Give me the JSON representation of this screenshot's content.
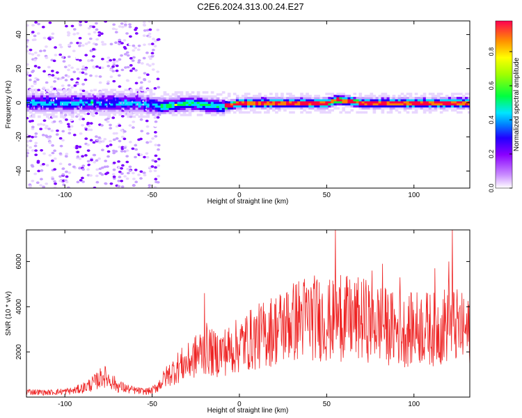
{
  "title": "C2E6.2024.313.00.24.E27",
  "chart_data": [
    {
      "type": "heatmap",
      "xlabel": "Height of straight line (km)",
      "ylabel": "Frequency (Hz)",
      "xlim": [
        -122,
        132
      ],
      "ylim": [
        -50,
        48
      ],
      "xticks": [
        -100,
        -50,
        0,
        50,
        100
      ],
      "yticks": [
        -40,
        -20,
        0,
        20,
        40
      ],
      "colorbar": {
        "label": "Normalized spectral amplitude",
        "range": [
          0,
          0.98
        ],
        "ticks": [
          0.0,
          0.2,
          0.4,
          0.6,
          0.8
        ]
      },
      "colormap": [
        "#ffffff",
        "#e9d7ff",
        "#c8a1ff",
        "#7b00ff",
        "#1a00ff",
        "#00d9ff",
        "#00ff40",
        "#ffff00",
        "#ff8000",
        "#ff0040"
      ],
      "ridge": [
        {
          "x": -90,
          "y": 0
        },
        {
          "x": -60,
          "y": 0
        },
        {
          "x": -45,
          "y": -2
        },
        {
          "x": -30,
          "y": 0
        },
        {
          "x": -10,
          "y": -2
        },
        {
          "x": 0,
          "y": 0
        },
        {
          "x": 30,
          "y": 0
        },
        {
          "x": 50,
          "y": 0
        },
        {
          "x": 55,
          "y": 2
        },
        {
          "x": 70,
          "y": 0
        },
        {
          "x": 100,
          "y": 0
        },
        {
          "x": 132,
          "y": 0
        }
      ]
    },
    {
      "type": "line",
      "xlabel": "Height of straight line (km)",
      "ylabel": "SNR (10 * v/v)",
      "xlim": [
        -122,
        132
      ],
      "ylim": [
        0,
        7400
      ],
      "xticks": [
        -100,
        -50,
        0,
        50,
        100
      ],
      "yticks": [
        2000,
        4000,
        6000
      ],
      "color": "#ee2222",
      "series": [
        {
          "x": [
            -122,
            -110,
            -95,
            -88,
            -82,
            -78,
            -74,
            -70,
            -62,
            -55,
            -50,
            -46,
            -42,
            -38,
            -34,
            -30,
            -26,
            -22,
            -18,
            -15,
            -10,
            -5,
            0,
            5,
            10,
            15,
            20,
            25,
            30,
            35,
            40,
            45,
            50,
            55,
            60,
            65,
            70,
            75,
            80,
            85,
            90,
            95,
            100,
            105,
            110,
            115,
            120,
            125,
            132
          ],
          "y": [
            250,
            200,
            280,
            450,
            700,
            950,
            750,
            500,
            320,
            250,
            280,
            550,
            900,
            1150,
            1400,
            1500,
            1750,
            2000,
            2150,
            1900,
            2000,
            2100,
            2300,
            2500,
            2650,
            2800,
            3000,
            3150,
            3300,
            3500,
            3550,
            3500,
            3400,
            3350,
            3500,
            3400,
            3450,
            3350,
            3300,
            3100,
            3000,
            2900,
            3050,
            3100,
            3000,
            3050,
            3300,
            3100,
            2800
          ],
          "peaks": [
            {
              "x": -20,
              "y": 4600
            },
            {
              "x": 28,
              "y": 4550
            },
            {
              "x": 55,
              "y": 7400
            },
            {
              "x": 58,
              "y": 5400
            },
            {
              "x": 76,
              "y": 5600
            },
            {
              "x": 82,
              "y": 5900
            },
            {
              "x": 92,
              "y": 5300
            },
            {
              "x": 112,
              "y": 5700
            },
            {
              "x": 120,
              "y": 6000
            },
            {
              "x": 122,
              "y": 7400
            }
          ]
        }
      ]
    }
  ]
}
